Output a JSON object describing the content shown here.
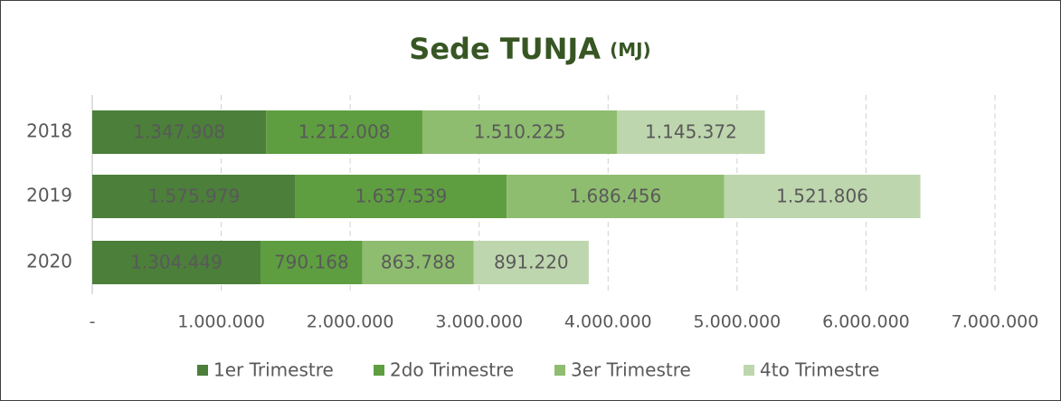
{
  "chart_data": {
    "type": "stacked_bar_horizontal",
    "title": "Sede TUNJA",
    "title_unit": "(MJ)",
    "categories": [
      "2018",
      "2019",
      "2020"
    ],
    "series": [
      {
        "name": "1er Trimestre",
        "color": "#4b7f3a",
        "values": [
          1347908,
          1575979,
          1304449
        ],
        "value_labels": [
          "1.347.908",
          "1.575.979",
          "1.304.449"
        ]
      },
      {
        "name": "2do Trimestre",
        "color": "#5e9e40",
        "values": [
          1212008,
          1637539,
          790168
        ],
        "value_labels": [
          "1.212.008",
          "1.637.539",
          "790.168"
        ]
      },
      {
        "name": "3er Trimestre",
        "color": "#8fbd70",
        "values": [
          1510225,
          1686456,
          863788
        ],
        "value_labels": [
          "1.510.225",
          "1.686.456",
          "863.788"
        ]
      },
      {
        "name": "4to Trimestre",
        "color": "#bed6ae",
        "values": [
          1145372,
          1521806,
          891220
        ],
        "value_labels": [
          "1.145.372",
          "1.521.806",
          "891.220"
        ]
      }
    ],
    "xlim": [
      0,
      7000000
    ],
    "xticks": [
      {
        "value": 0,
        "label": "-"
      },
      {
        "value": 1000000,
        "label": "1.000.000"
      },
      {
        "value": 2000000,
        "label": "2.000.000"
      },
      {
        "value": 3000000,
        "label": "3.000.000"
      },
      {
        "value": 4000000,
        "label": "4.000.000"
      },
      {
        "value": 5000000,
        "label": "5.000.000"
      },
      {
        "value": 6000000,
        "label": "6.000.000"
      },
      {
        "value": 7000000,
        "label": "7.000.000"
      }
    ],
    "grid": true,
    "legend": "bottom"
  }
}
